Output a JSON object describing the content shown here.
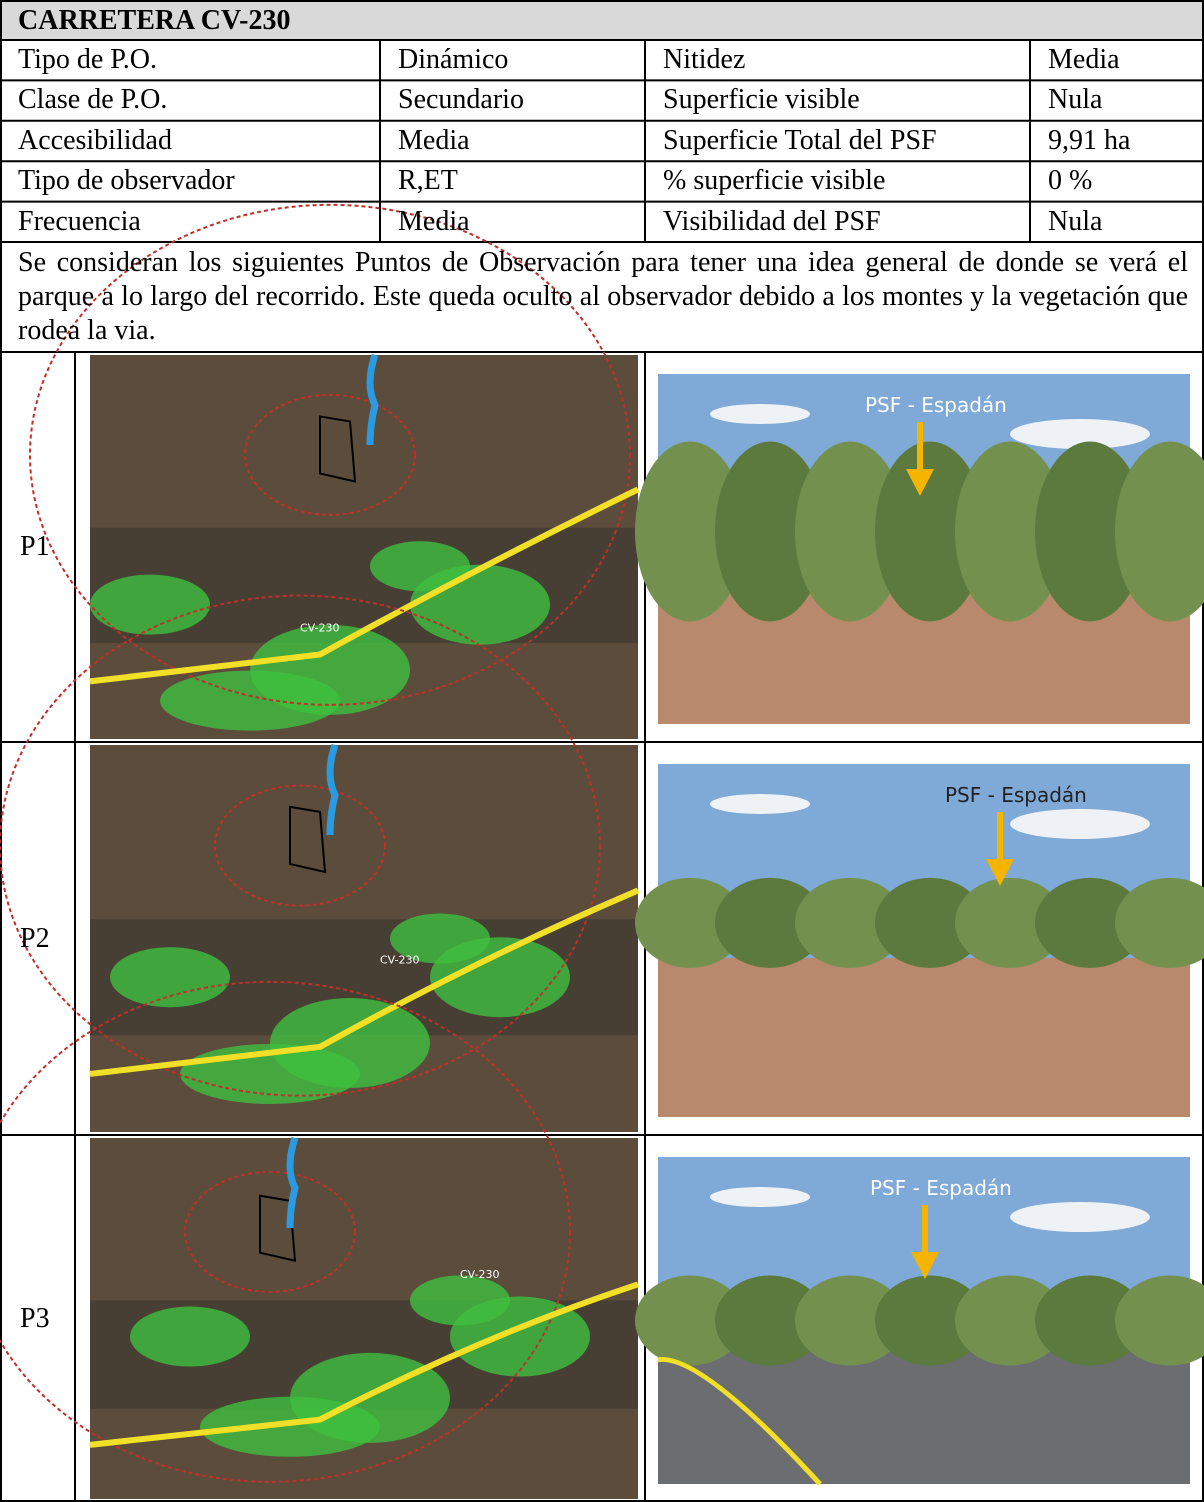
{
  "header": {
    "title": "CARRETERA CV-230"
  },
  "table": {
    "rows": [
      [
        "Tipo de P.O.",
        "Dinámico",
        "Nitidez",
        "Media"
      ],
      [
        "Clase de P.O.",
        "Secundario",
        "Superficie visible",
        "Nula"
      ],
      [
        "Accesibilidad",
        "Media",
        "Superficie Total del PSF",
        "9,91 ha"
      ],
      [
        "Tipo de observador",
        "R,ET",
        "% superficie visible",
        "0 %"
      ],
      [
        "Frecuencia",
        "Media",
        "Visibilidad del PSF",
        "Nula"
      ]
    ]
  },
  "description": "Se consideran  los siguientes Puntos de Observación para tener una idea general de donde se verá el parque a lo largo del recorrido. Este queda oculto al observador debido a los montes y la vegetación que rodea la via.",
  "points": [
    {
      "label": "P1",
      "map_label": "CV-230",
      "photo_label": "PSF - Espadán"
    },
    {
      "label": "P2",
      "map_label": "CV-230",
      "photo_label": "PSF - Espadán"
    },
    {
      "label": "P3",
      "map_label": "CV-230",
      "photo_label": "PSF - Espadán"
    }
  ]
}
